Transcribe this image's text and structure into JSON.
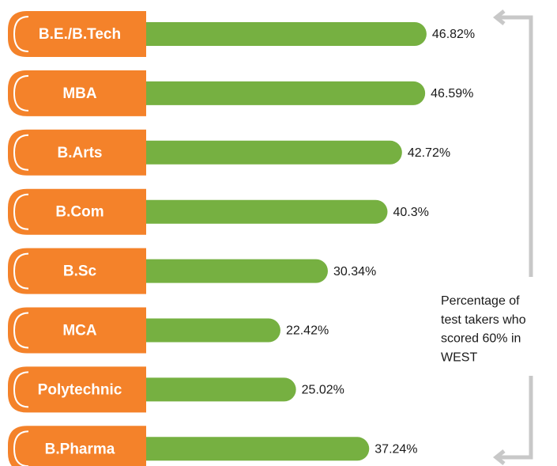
{
  "chart_data": {
    "type": "bar",
    "orientation": "horizontal",
    "categories": [
      "B.E./B.Tech",
      "MBA",
      "B.Arts",
      "B.Com",
      "B.Sc",
      "MCA",
      "Polytechnic",
      "B.Pharma"
    ],
    "values": [
      46.82,
      46.59,
      42.72,
      40.3,
      30.34,
      22.42,
      25.02,
      37.24
    ],
    "value_labels": [
      "46.82%",
      "46.59%",
      "42.72%",
      "40.3%",
      "30.34%",
      "22.42%",
      "25.02%",
      "37.24%"
    ],
    "color": "#76b041",
    "label_color": "#f4822a",
    "annotation": [
      "Percentage of",
      "test takers who",
      "scored 60% in",
      "WEST"
    ]
  }
}
